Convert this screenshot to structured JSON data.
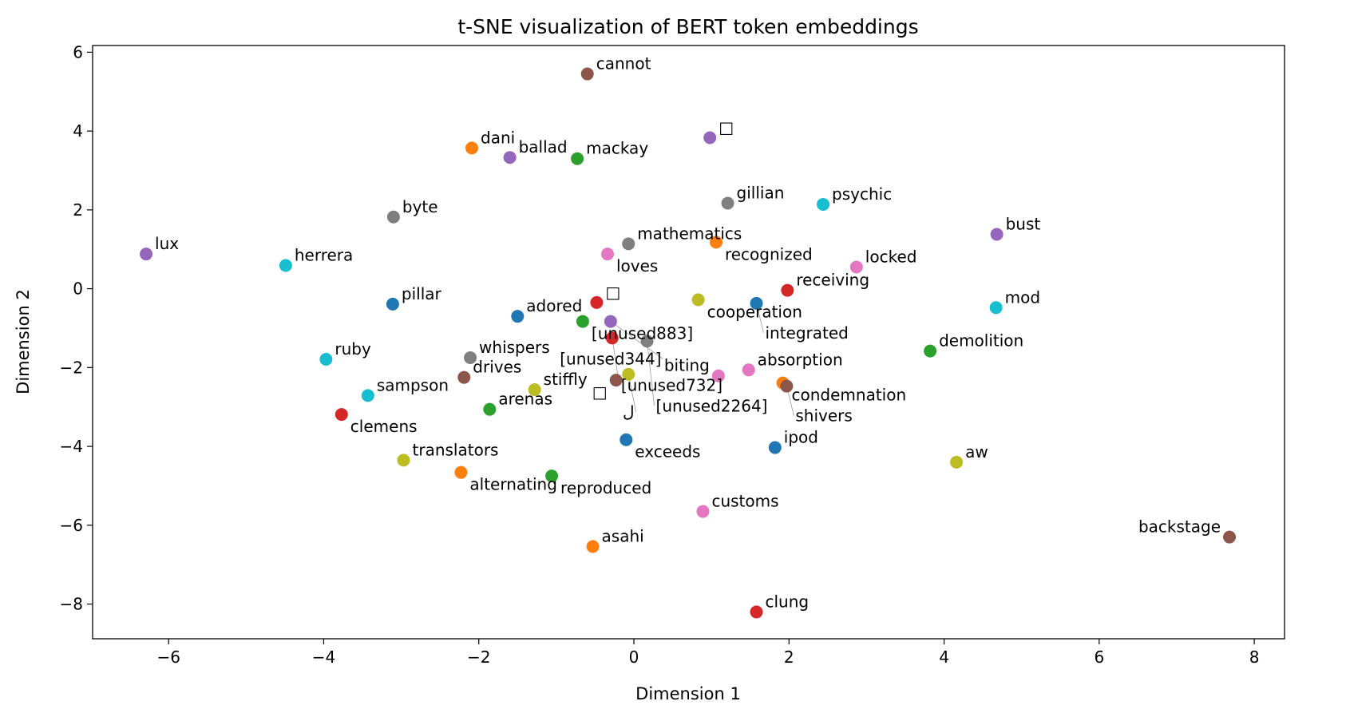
{
  "chart_data": {
    "type": "scatter",
    "title": "t-SNE visualization of BERT token embeddings",
    "xlabel": "Dimension 1",
    "ylabel": "Dimension 2",
    "xlim": [
      -6.98,
      8.39
    ],
    "ylim": [
      -8.88,
      6.17
    ],
    "xticks": [
      -6,
      -4,
      -2,
      0,
      2,
      4,
      6,
      8
    ],
    "yticks": [
      -8,
      -6,
      -4,
      -2,
      0,
      2,
      4,
      6
    ],
    "grid": false,
    "legend": "none",
    "colors": [
      "#1f77b4",
      "#ff7f0e",
      "#2ca02c",
      "#d62728",
      "#9467bd",
      "#8c564b",
      "#e377c2",
      "#7f7f7f",
      "#bcbd22",
      "#17becf"
    ],
    "points": [
      {
        "label": "cannot",
        "x": -0.6,
        "y": 5.45,
        "color": "#8c564b"
      },
      {
        "label": "dani",
        "x": -2.09,
        "y": 3.57,
        "color": "#ff7f0e"
      },
      {
        "label": "ballad",
        "x": -1.6,
        "y": 3.33,
        "color": "#9467bd"
      },
      {
        "label": "mackay",
        "x": -0.73,
        "y": 3.3,
        "color": "#2ca02c"
      },
      {
        "label": "□",
        "x": 0.98,
        "y": 3.83,
        "color": "#9467bd"
      },
      {
        "label": "gillian",
        "x": 1.21,
        "y": 2.17,
        "color": "#7f7f7f"
      },
      {
        "label": "psychic",
        "x": 2.44,
        "y": 2.14,
        "color": "#17becf"
      },
      {
        "label": "byte",
        "x": -3.1,
        "y": 1.82,
        "color": "#7f7f7f"
      },
      {
        "label": "bust",
        "x": 4.68,
        "y": 1.38,
        "color": "#9467bd"
      },
      {
        "label": "mathematics",
        "x": -0.07,
        "y": 1.14,
        "color": "#7f7f7f"
      },
      {
        "label": "recognized",
        "x": 1.06,
        "y": 1.18,
        "color": "#ff7f0e"
      },
      {
        "label": "lux",
        "x": -6.29,
        "y": 0.88,
        "color": "#9467bd"
      },
      {
        "label": "loves",
        "x": -0.34,
        "y": 0.88,
        "color": "#e377c2"
      },
      {
        "label": "herrera",
        "x": -4.49,
        "y": 0.59,
        "color": "#17becf"
      },
      {
        "label": "locked",
        "x": 2.87,
        "y": 0.55,
        "color": "#e377c2"
      },
      {
        "label": "receiving",
        "x": 1.98,
        "y": -0.04,
        "color": "#d62728"
      },
      {
        "label": "pillar",
        "x": -3.11,
        "y": -0.39,
        "color": "#1f77b4"
      },
      {
        "label": "□",
        "x": -0.48,
        "y": -0.35,
        "color": "#d62728"
      },
      {
        "label": "cooperation",
        "x": 0.83,
        "y": -0.28,
        "color": "#bcbd22"
      },
      {
        "label": "integrated",
        "x": 1.58,
        "y": -0.37,
        "color": "#1f77b4"
      },
      {
        "label": "mod",
        "x": 4.67,
        "y": -0.48,
        "color": "#17becf"
      },
      {
        "label": "adored",
        "x": -1.5,
        "y": -0.7,
        "color": "#1f77b4"
      },
      {
        "label": "[unused883]",
        "x": -0.66,
        "y": -0.83,
        "color": "#2ca02c"
      },
      {
        "label": "[unused344]",
        "x": -0.3,
        "y": -0.83,
        "color": "#9467bd"
      },
      {
        "label": "[unused732]",
        "x": -0.28,
        "y": -1.25,
        "color": "#d62728"
      },
      {
        "label": "[unused2264]",
        "x": 0.17,
        "y": -1.33,
        "color": "#7f7f7f"
      },
      {
        "label": "demolition",
        "x": 3.82,
        "y": -1.58,
        "color": "#2ca02c"
      },
      {
        "label": "ruby",
        "x": -3.97,
        "y": -1.79,
        "color": "#17becf"
      },
      {
        "label": "whispers",
        "x": -2.11,
        "y": -1.75,
        "color": "#7f7f7f"
      },
      {
        "label": "absorption",
        "x": 1.48,
        "y": -2.06,
        "color": "#e377c2"
      },
      {
        "label": "biting",
        "x": 1.09,
        "y": -2.21,
        "color": "#e377c2"
      },
      {
        "label": "condemnation",
        "x": 1.92,
        "y": -2.39,
        "color": "#ff7f0e"
      },
      {
        "label": "shivers",
        "x": 1.97,
        "y": -2.47,
        "color": "#8c564b"
      },
      {
        "label": "drives",
        "x": -2.19,
        "y": -2.25,
        "color": "#8c564b"
      },
      {
        "label": "ل",
        "x": -0.07,
        "y": -2.17,
        "color": "#bcbd22"
      },
      {
        "label": "□",
        "x": -0.23,
        "y": -2.32,
        "color": "#8c564b"
      },
      {
        "label": "stiffly",
        "x": -1.28,
        "y": -2.56,
        "color": "#bcbd22"
      },
      {
        "label": "sampson",
        "x": -3.43,
        "y": -2.71,
        "color": "#17becf"
      },
      {
        "label": "arenas",
        "x": -1.86,
        "y": -3.06,
        "color": "#2ca02c"
      },
      {
        "label": "clemens",
        "x": -3.77,
        "y": -3.19,
        "color": "#d62728"
      },
      {
        "label": "exceeds",
        "x": -0.1,
        "y": -3.83,
        "color": "#1f77b4"
      },
      {
        "label": "ipod",
        "x": 1.82,
        "y": -4.03,
        "color": "#1f77b4"
      },
      {
        "label": "translators",
        "x": -2.97,
        "y": -4.35,
        "color": "#bcbd22"
      },
      {
        "label": "aw",
        "x": 4.16,
        "y": -4.4,
        "color": "#bcbd22"
      },
      {
        "label": "alternating",
        "x": -2.23,
        "y": -4.66,
        "color": "#ff7f0e"
      },
      {
        "label": "reproduced",
        "x": -1.06,
        "y": -4.75,
        "color": "#2ca02c"
      },
      {
        "label": "customs",
        "x": 0.89,
        "y": -5.65,
        "color": "#e377c2"
      },
      {
        "label": "asahi",
        "x": -0.53,
        "y": -6.54,
        "color": "#ff7f0e"
      },
      {
        "label": "backstage",
        "x": 7.68,
        "y": -6.3,
        "color": "#8c564b"
      },
      {
        "label": "clung",
        "x": 1.58,
        "y": -8.2,
        "color": "#d62728"
      }
    ]
  }
}
